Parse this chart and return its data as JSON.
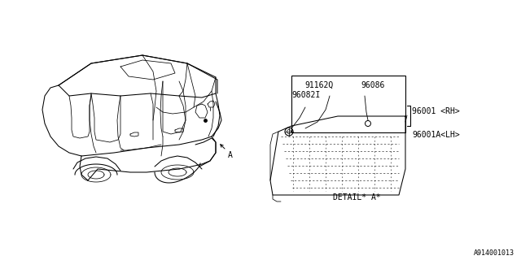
{
  "bg_color": "#ffffff",
  "line_color": "#000000",
  "diagram_id": "A914001013",
  "label_A": "A",
  "label_detail": "DETAIL* A*",
  "label_91162Q": "91162Q",
  "label_96086": "96086",
  "label_96082I": "96082I",
  "label_96001rh": "96001 <RH>",
  "label_96001lh": "96001A<LH>",
  "fs_main": 7.0,
  "fs_tiny": 6.0
}
